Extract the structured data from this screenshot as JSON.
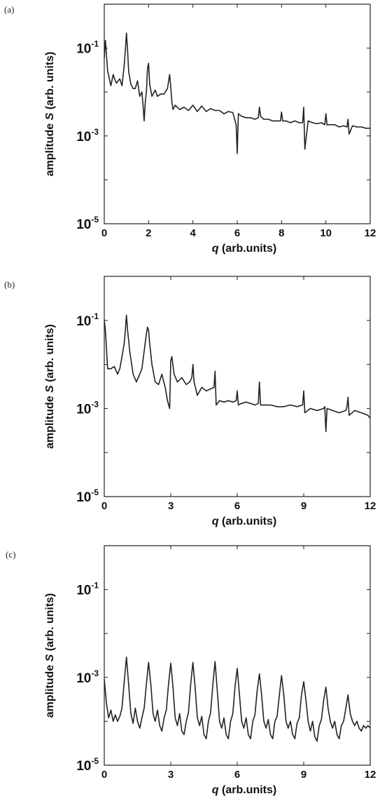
{
  "chart_data": [
    {
      "panel_label": "(a)",
      "type": "line",
      "xlabel": {
        "var": "q",
        "rest": " (arb.units)"
      },
      "ylabel": {
        "pre": "amplitude ",
        "var": "S",
        "post": " (arb. units)"
      },
      "xlim": [
        0,
        12
      ],
      "ylim": [
        1e-05,
        1
      ],
      "yscale": "log",
      "xticks": [
        0,
        2,
        4,
        6,
        8,
        10,
        12
      ],
      "yticks": [
        {
          "base": "10",
          "exp": "-5",
          "value": 1e-05
        },
        {
          "base": "10",
          "exp": "-3",
          "value": 0.001
        },
        {
          "base": "10",
          "exp": "-1",
          "value": 0.1
        }
      ],
      "grid": false,
      "line_color": "#222222",
      "x": [
        0,
        0.05,
        0.15,
        0.3,
        0.4,
        0.5,
        0.55,
        0.7,
        0.8,
        0.9,
        0.95,
        1.0,
        1.05,
        1.1,
        1.2,
        1.3,
        1.4,
        1.5,
        1.6,
        1.7,
        1.75,
        1.8,
        1.85,
        1.9,
        1.95,
        2.0,
        2.05,
        2.15,
        2.3,
        2.4,
        2.55,
        2.7,
        2.85,
        2.95,
        3.0,
        3.05,
        3.1,
        3.2,
        3.4,
        3.6,
        3.8,
        4.0,
        4.2,
        4.4,
        4.6,
        4.8,
        5.0,
        5.2,
        5.4,
        5.6,
        5.8,
        5.95,
        6.0,
        6.05,
        6.2,
        6.4,
        6.6,
        6.8,
        6.95,
        7.0,
        7.05,
        7.2,
        7.4,
        7.6,
        7.8,
        7.95,
        8.0,
        8.05,
        8.2,
        8.4,
        8.6,
        8.8,
        8.95,
        9.0,
        9.05,
        9.2,
        9.4,
        9.6,
        9.8,
        9.95,
        10.0,
        10.05,
        10.2,
        10.4,
        10.6,
        10.8,
        10.95,
        11.0,
        11.05,
        11.2,
        11.4,
        11.6,
        11.8,
        12.0
      ],
      "y": [
        0.06,
        0.15,
        0.03,
        0.014,
        0.025,
        0.018,
        0.016,
        0.02,
        0.014,
        0.04,
        0.09,
        0.22,
        0.09,
        0.03,
        0.015,
        0.012,
        0.012,
        0.018,
        0.008,
        0.01,
        0.005,
        0.0022,
        0.006,
        0.01,
        0.035,
        0.045,
        0.015,
        0.008,
        0.011,
        0.008,
        0.009,
        0.009,
        0.012,
        0.025,
        0.013,
        0.006,
        0.004,
        0.005,
        0.004,
        0.0045,
        0.0038,
        0.005,
        0.0036,
        0.0048,
        0.0036,
        0.0042,
        0.0038,
        0.0038,
        0.0032,
        0.0036,
        0.0034,
        0.0018,
        0.0004,
        0.0032,
        0.0028,
        0.0026,
        0.0026,
        0.0024,
        0.0026,
        0.0045,
        0.0028,
        0.0024,
        0.0024,
        0.0022,
        0.0022,
        0.0022,
        0.0035,
        0.0022,
        0.0022,
        0.002,
        0.0022,
        0.002,
        0.002,
        0.0045,
        0.0005,
        0.0022,
        0.002,
        0.0019,
        0.002,
        0.0018,
        0.0032,
        0.0018,
        0.0018,
        0.0018,
        0.0016,
        0.0017,
        0.0016,
        0.0024,
        0.0011,
        0.0017,
        0.0016,
        0.0016,
        0.0015,
        0.0015
      ]
    },
    {
      "panel_label": "(b)",
      "type": "line",
      "xlabel": {
        "var": "q",
        "rest": " (arb.units)"
      },
      "ylabel": {
        "pre": "amplitude ",
        "var": "S",
        "post": " (arb. units)"
      },
      "xlim": [
        0,
        12
      ],
      "ylim": [
        1e-05,
        1
      ],
      "yscale": "log",
      "xticks": [
        0,
        3,
        6,
        9,
        12
      ],
      "yticks": [
        {
          "base": "10",
          "exp": "-5",
          "value": 1e-05
        },
        {
          "base": "10",
          "exp": "-3",
          "value": 0.001
        },
        {
          "base": "10",
          "exp": "-1",
          "value": 0.1
        }
      ],
      "grid": false,
      "line_color": "#222222",
      "x": [
        0,
        0.05,
        0.15,
        0.3,
        0.45,
        0.6,
        0.7,
        0.8,
        0.9,
        0.95,
        1.0,
        1.05,
        1.15,
        1.3,
        1.45,
        1.6,
        1.7,
        1.8,
        1.9,
        1.95,
        2.0,
        2.05,
        2.15,
        2.3,
        2.45,
        2.6,
        2.75,
        2.85,
        2.95,
        3.0,
        3.05,
        3.15,
        3.3,
        3.5,
        3.7,
        3.85,
        3.95,
        4.0,
        4.05,
        4.2,
        4.4,
        4.6,
        4.8,
        4.95,
        5.0,
        5.05,
        5.2,
        5.4,
        5.6,
        5.8,
        5.95,
        6.0,
        6.05,
        6.2,
        6.4,
        6.6,
        6.8,
        6.95,
        7.0,
        7.05,
        7.2,
        7.5,
        7.8,
        8.1,
        8.4,
        8.7,
        8.95,
        9.0,
        9.05,
        9.3,
        9.6,
        9.9,
        9.95,
        10.0,
        10.05,
        10.3,
        10.6,
        10.9,
        10.95,
        11.0,
        11.05,
        11.3,
        11.6,
        11.9,
        12.0
      ],
      "y": [
        0.1,
        0.06,
        0.008,
        0.008,
        0.009,
        0.006,
        0.008,
        0.015,
        0.03,
        0.06,
        0.13,
        0.06,
        0.02,
        0.006,
        0.004,
        0.006,
        0.008,
        0.02,
        0.05,
        0.07,
        0.06,
        0.03,
        0.01,
        0.004,
        0.0035,
        0.006,
        0.003,
        0.0015,
        0.001,
        0.012,
        0.015,
        0.006,
        0.004,
        0.005,
        0.0035,
        0.004,
        0.005,
        0.01,
        0.004,
        0.002,
        0.003,
        0.0025,
        0.0028,
        0.003,
        0.007,
        0.0012,
        0.0015,
        0.0014,
        0.0015,
        0.0014,
        0.0015,
        0.0025,
        0.0012,
        0.0013,
        0.0014,
        0.0013,
        0.0012,
        0.0013,
        0.004,
        0.0012,
        0.0012,
        0.0012,
        0.0011,
        0.0011,
        0.0012,
        0.0011,
        0.0012,
        0.0025,
        0.0008,
        0.001,
        0.0009,
        0.001,
        0.0011,
        0.0003,
        0.001,
        0.0009,
        0.0008,
        0.0009,
        0.0011,
        0.0018,
        0.0007,
        0.0009,
        0.0008,
        0.0007,
        0.0006
      ]
    },
    {
      "panel_label": "(c)",
      "type": "line",
      "xlabel": {
        "var": "q",
        "rest": " (arb.units)"
      },
      "ylabel": {
        "pre": "amplitude ",
        "var": "S",
        "post": " (arb. units)"
      },
      "xlim": [
        0,
        12
      ],
      "ylim": [
        1e-05,
        1
      ],
      "yscale": "log",
      "xticks": [
        0,
        3,
        6,
        9,
        12
      ],
      "yticks": [
        {
          "base": "10",
          "exp": "-5",
          "value": 1e-05
        },
        {
          "base": "10",
          "exp": "-3",
          "value": 0.001
        },
        {
          "base": "10",
          "exp": "-1",
          "value": 0.1
        }
      ],
      "grid": false,
      "line_color": "#222222",
      "x": [
        0,
        0.1,
        0.2,
        0.3,
        0.4,
        0.5,
        0.6,
        0.7,
        0.8,
        0.9,
        1.0,
        1.1,
        1.2,
        1.3,
        1.4,
        1.5,
        1.6,
        1.7,
        1.8,
        1.9,
        2.0,
        2.1,
        2.2,
        2.3,
        2.4,
        2.5,
        2.6,
        2.7,
        2.8,
        2.9,
        3.0,
        3.1,
        3.2,
        3.3,
        3.4,
        3.5,
        3.6,
        3.7,
        3.8,
        3.9,
        4.0,
        4.1,
        4.2,
        4.3,
        4.4,
        4.5,
        4.6,
        4.7,
        4.8,
        4.9,
        5.0,
        5.1,
        5.2,
        5.3,
        5.4,
        5.5,
        5.6,
        5.7,
        5.8,
        5.9,
        6.0,
        6.1,
        6.2,
        6.3,
        6.4,
        6.5,
        6.6,
        6.7,
        6.8,
        6.9,
        7.0,
        7.1,
        7.2,
        7.3,
        7.4,
        7.5,
        7.6,
        7.7,
        7.8,
        7.9,
        8.0,
        8.1,
        8.2,
        8.3,
        8.4,
        8.5,
        8.6,
        8.7,
        8.8,
        8.9,
        9.0,
        9.1,
        9.2,
        9.3,
        9.4,
        9.5,
        9.6,
        9.7,
        9.8,
        9.9,
        10.0,
        10.1,
        10.2,
        10.3,
        10.4,
        10.5,
        10.6,
        10.7,
        10.8,
        10.9,
        11.0,
        11.1,
        11.2,
        11.3,
        11.4,
        11.5,
        11.6,
        11.7,
        11.8,
        11.9,
        12.0
      ],
      "y": [
        0.0009,
        0.00025,
        0.00012,
        0.00018,
        0.0001,
        0.00014,
        0.0001,
        0.00013,
        0.0002,
        0.0008,
        0.0029,
        0.0007,
        0.00015,
        9e-05,
        0.0002,
        0.0001,
        7e-05,
        0.00012,
        0.0002,
        0.0007,
        0.0022,
        0.0007,
        0.00015,
        0.0001,
        0.00018,
        8e-05,
        6e-05,
        0.00012,
        0.00018,
        0.0007,
        0.0021,
        0.0006,
        0.00012,
        8e-05,
        0.00015,
        6e-05,
        5e-05,
        0.0001,
        0.00016,
        0.0007,
        0.0022,
        0.0006,
        0.00012,
        8e-05,
        0.00013,
        5e-05,
        4e-05,
        0.0001,
        0.00016,
        0.0007,
        0.0023,
        0.0005,
        0.0001,
        7e-05,
        0.00012,
        5e-05,
        4e-05,
        0.0001,
        0.00015,
        0.0006,
        0.0016,
        0.0004,
        0.0001,
        7e-05,
        0.00012,
        5e-05,
        4e-05,
        0.0001,
        0.00014,
        0.0005,
        0.0012,
        0.0004,
        0.0001,
        7e-05,
        0.00011,
        5e-05,
        4e-05,
        0.0001,
        0.00013,
        0.0004,
        0.0011,
        0.0004,
        0.0001,
        7e-05,
        0.0001,
        5e-05,
        4e-05,
        9e-05,
        0.00012,
        0.0004,
        0.0008,
        0.0003,
        0.0001,
        6e-05,
        0.0001,
        4.5e-05,
        3.5e-05,
        8e-05,
        0.00011,
        0.0003,
        0.0006,
        0.0002,
        0.0001,
        7e-05,
        0.0001,
        5e-05,
        4e-05,
        8e-05,
        0.0001,
        0.0002,
        0.0004,
        0.00015,
        0.0001,
        8e-05,
        0.0001,
        7e-05,
        6e-05,
        8e-05,
        7e-05,
        8e-05,
        7e-05
      ]
    }
  ]
}
